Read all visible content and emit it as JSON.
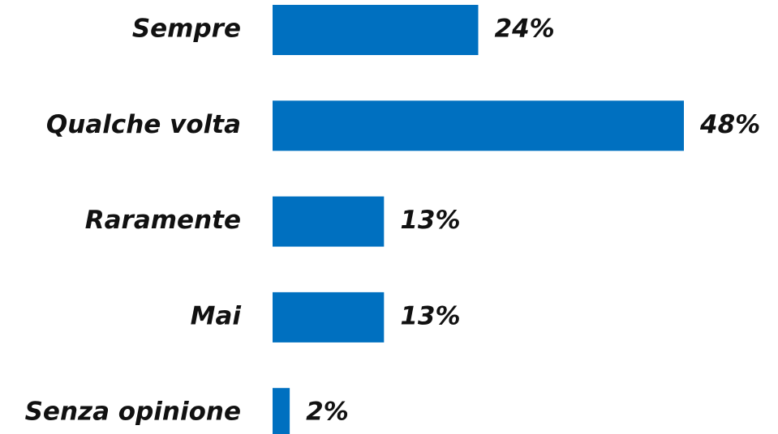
{
  "chart_data": {
    "type": "bar",
    "orientation": "horizontal",
    "categories": [
      "Sempre",
      "Qualche volta",
      "Raramente",
      "Mai",
      "Senza opinione"
    ],
    "values": [
      24,
      48,
      13,
      13,
      2
    ],
    "value_labels": [
      "24%",
      "48%",
      "13%",
      "13%",
      "2%"
    ],
    "color": "#0070c0"
  }
}
